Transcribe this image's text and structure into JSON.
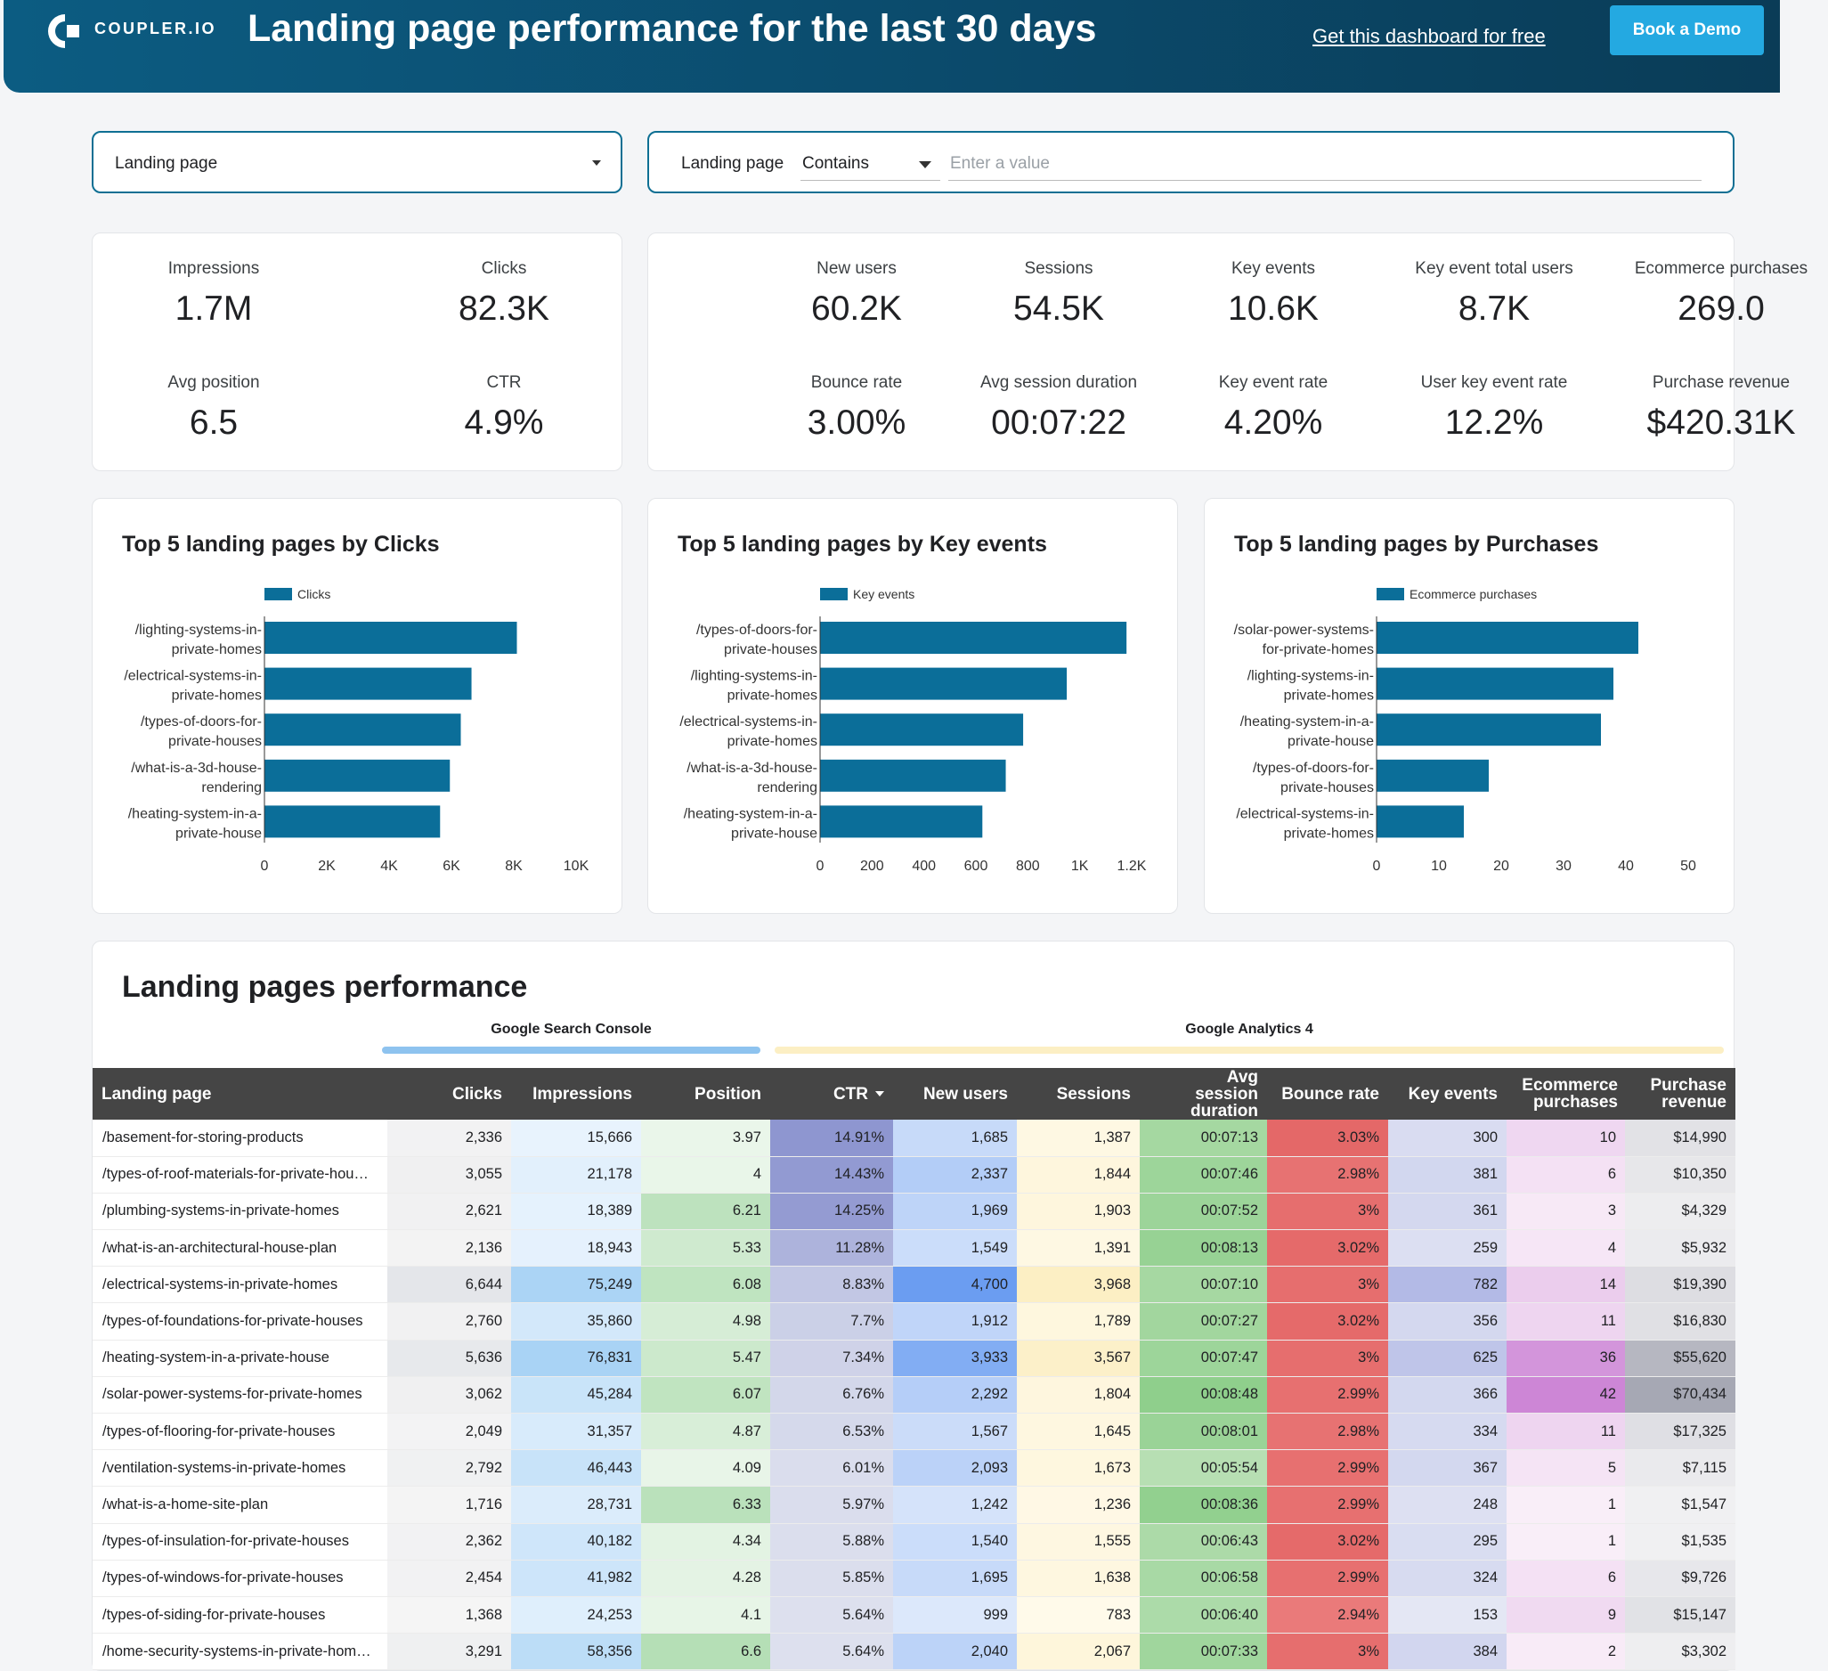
{
  "header": {
    "brand": "COUPLER.IO",
    "title": "Landing page performance for the last 30 days",
    "get_link": "Get this dashboard for free",
    "demo_button": "Book a Demo",
    "bg_color": "#0b4f72",
    "accent_color": "#24a9e1"
  },
  "filters": {
    "dimension_label": "Landing page",
    "condition_field": "Landing page",
    "condition_operator": "Contains",
    "value_placeholder": "Enter a value"
  },
  "search_console_kpis": [
    {
      "label": "Impressions",
      "value": "1.7M"
    },
    {
      "label": "Clicks",
      "value": "82.3K"
    },
    {
      "label": "Avg position",
      "value": "6.5"
    },
    {
      "label": "CTR",
      "value": "4.9%"
    }
  ],
  "analytics_kpis": [
    {
      "label": "New users",
      "value": "60.2K"
    },
    {
      "label": "Sessions",
      "value": "54.5K"
    },
    {
      "label": "Key events",
      "value": "10.6K"
    },
    {
      "label": "Key event total users",
      "value": "8.7K"
    },
    {
      "label": "Ecommerce purchases",
      "value": "269.0"
    },
    {
      "label": "Bounce rate",
      "value": "3.00%"
    },
    {
      "label": "Avg session duration",
      "value": "00:07:22"
    },
    {
      "label": "Key event rate",
      "value": "4.20%"
    },
    {
      "label": "User key event rate",
      "value": "12.2%"
    },
    {
      "label": "Purchase revenue",
      "value": "$420.31K"
    }
  ],
  "chart_data": [
    {
      "type": "bar",
      "orientation": "horizontal",
      "title": "Top 5 landing pages by Clicks",
      "legend": "Clicks",
      "categories": [
        [
          "/lighting-systems-in-",
          "private-homes"
        ],
        [
          "/electrical-systems-in-",
          "private-homes"
        ],
        [
          "/types-of-doors-for-",
          "private-houses"
        ],
        [
          "/what-is-a-3d-house-",
          "rendering"
        ],
        [
          "/heating-system-in-a-",
          "private-house"
        ]
      ],
      "values": [
        8100,
        6644,
        6300,
        5950,
        5636
      ],
      "xlim": [
        0,
        10000
      ],
      "ticks": [
        0,
        2000,
        4000,
        6000,
        8000,
        10000
      ],
      "tick_labels": [
        "0",
        "2K",
        "4K",
        "6K",
        "8K",
        "10K"
      ],
      "color": "#0b6e99"
    },
    {
      "type": "bar",
      "orientation": "horizontal",
      "title": "Top 5 landing pages by Key events",
      "legend": "Key events",
      "categories": [
        [
          "/types-of-doors-for-",
          "private-houses"
        ],
        [
          "/lighting-systems-in-",
          "private-homes"
        ],
        [
          "/electrical-systems-in-",
          "private-homes"
        ],
        [
          "/what-is-a-3d-house-",
          "rendering"
        ],
        [
          "/heating-system-in-a-",
          "private-house"
        ]
      ],
      "values": [
        1180,
        950,
        782,
        715,
        625
      ],
      "xlim": [
        0,
        1200
      ],
      "ticks": [
        0,
        200,
        400,
        600,
        800,
        1000,
        1200
      ],
      "tick_labels": [
        "0",
        "200",
        "400",
        "600",
        "800",
        "1K",
        "1.2K"
      ],
      "color": "#0b6e99"
    },
    {
      "type": "bar",
      "orientation": "horizontal",
      "title": "Top 5 landing pages by Purchases",
      "legend": "Ecommerce purchases",
      "categories": [
        [
          "/solar-power-systems-",
          "for-private-homes"
        ],
        [
          "/lighting-systems-in-",
          "private-homes"
        ],
        [
          "/heating-system-in-a-",
          "private-house"
        ],
        [
          "/types-of-doors-for-",
          "private-houses"
        ],
        [
          "/electrical-systems-in-",
          "private-homes"
        ]
      ],
      "values": [
        42,
        38,
        36,
        18,
        14
      ],
      "xlim": [
        0,
        50
      ],
      "ticks": [
        0,
        10,
        20,
        30,
        40,
        50
      ],
      "tick_labels": [
        "0",
        "10",
        "20",
        "30",
        "40",
        "50"
      ],
      "color": "#0b6e99"
    }
  ],
  "table": {
    "title": "Landing pages performance",
    "group_gsc": "Google Search Console",
    "group_ga4": "Google Analytics 4",
    "gsc_color": "#8ec3ef",
    "ga4_color": "#fcefc4",
    "columns": [
      "Landing page",
      "Clicks",
      "Impressions",
      "Position",
      "CTR",
      "New users",
      "Sessions",
      "Avg session duration",
      "Bounce rate",
      "Key events",
      "Ecommerce purchases",
      "Purchase revenue"
    ],
    "rows": [
      [
        "/basement-for-storing-products",
        "2,336",
        "15,666",
        "3.97",
        "14.91%",
        "1,685",
        "1,387",
        "00:07:13",
        "3.03%",
        "300",
        "10",
        "$14,990"
      ],
      [
        "/types-of-roof-materials-for-private-hou…",
        "3,055",
        "21,178",
        "4",
        "14.43%",
        "2,337",
        "1,844",
        "00:07:46",
        "2.98%",
        "381",
        "6",
        "$10,350"
      ],
      [
        "/plumbing-systems-in-private-homes",
        "2,621",
        "18,389",
        "6.21",
        "14.25%",
        "1,969",
        "1,903",
        "00:07:52",
        "3%",
        "361",
        "3",
        "$4,329"
      ],
      [
        "/what-is-an-architectural-house-plan",
        "2,136",
        "18,943",
        "5.33",
        "11.28%",
        "1,549",
        "1,391",
        "00:08:13",
        "3.02%",
        "259",
        "4",
        "$5,932"
      ],
      [
        "/electrical-systems-in-private-homes",
        "6,644",
        "75,249",
        "6.08",
        "8.83%",
        "4,700",
        "3,968",
        "00:07:10",
        "3%",
        "782",
        "14",
        "$19,390"
      ],
      [
        "/types-of-foundations-for-private-houses",
        "2,760",
        "35,860",
        "4.98",
        "7.7%",
        "1,912",
        "1,789",
        "00:07:27",
        "3.02%",
        "356",
        "11",
        "$16,830"
      ],
      [
        "/heating-system-in-a-private-house",
        "5,636",
        "76,831",
        "5.47",
        "7.34%",
        "3,933",
        "3,567",
        "00:07:47",
        "3%",
        "625",
        "36",
        "$55,620"
      ],
      [
        "/solar-power-systems-for-private-homes",
        "3,062",
        "45,284",
        "6.07",
        "6.76%",
        "2,292",
        "1,804",
        "00:08:48",
        "2.99%",
        "366",
        "42",
        "$70,434"
      ],
      [
        "/types-of-flooring-for-private-houses",
        "2,049",
        "31,357",
        "4.87",
        "6.53%",
        "1,567",
        "1,645",
        "00:08:01",
        "2.98%",
        "334",
        "11",
        "$17,325"
      ],
      [
        "/ventilation-systems-in-private-homes",
        "2,792",
        "46,443",
        "4.09",
        "6.01%",
        "2,093",
        "1,673",
        "00:05:54",
        "2.99%",
        "367",
        "5",
        "$7,115"
      ],
      [
        "/what-is-a-home-site-plan",
        "1,716",
        "28,731",
        "6.33",
        "5.97%",
        "1,242",
        "1,236",
        "00:08:36",
        "2.99%",
        "248",
        "1",
        "$1,547"
      ],
      [
        "/types-of-insulation-for-private-houses",
        "2,362",
        "40,182",
        "4.34",
        "5.88%",
        "1,540",
        "1,555",
        "00:06:43",
        "3.02%",
        "295",
        "1",
        "$1,535"
      ],
      [
        "/types-of-windows-for-private-houses",
        "2,454",
        "41,982",
        "4.28",
        "5.85%",
        "1,695",
        "1,638",
        "00:06:58",
        "2.99%",
        "324",
        "6",
        "$9,726"
      ],
      [
        "/types-of-siding-for-private-houses",
        "1,368",
        "24,253",
        "4.1",
        "5.64%",
        "999",
        "783",
        "00:06:40",
        "2.94%",
        "153",
        "9",
        "$15,147"
      ],
      [
        "/home-security-systems-in-private-hom…",
        "3,291",
        "58,356",
        "6.6",
        "5.64%",
        "2,040",
        "2,067",
        "00:07:33",
        "3%",
        "384",
        "2",
        "$3,302"
      ]
    ]
  }
}
